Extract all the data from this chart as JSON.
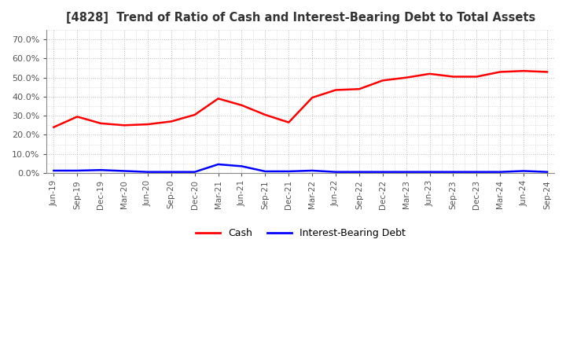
{
  "title": "[4828]  Trend of Ratio of Cash and Interest-Bearing Debt to Total Assets",
  "x_labels": [
    "Jun-19",
    "Sep-19",
    "Dec-19",
    "Mar-20",
    "Jun-20",
    "Sep-20",
    "Dec-20",
    "Mar-21",
    "Jun-21",
    "Sep-21",
    "Dec-21",
    "Mar-22",
    "Jun-22",
    "Sep-22",
    "Dec-22",
    "Mar-23",
    "Jun-23",
    "Sep-23",
    "Dec-23",
    "Mar-24",
    "Jun-24",
    "Sep-24"
  ],
  "cash": [
    0.24,
    0.295,
    0.26,
    0.25,
    0.255,
    0.27,
    0.305,
    0.39,
    0.355,
    0.305,
    0.265,
    0.395,
    0.435,
    0.44,
    0.485,
    0.5,
    0.52,
    0.505,
    0.505,
    0.53,
    0.535,
    0.53
  ],
  "interest_bearing_debt": [
    0.012,
    0.012,
    0.015,
    0.01,
    0.005,
    0.005,
    0.005,
    0.045,
    0.035,
    0.008,
    0.008,
    0.012,
    0.005,
    0.005,
    0.005,
    0.005,
    0.005,
    0.005,
    0.005,
    0.005,
    0.01,
    0.005
  ],
  "cash_color": "#FF0000",
  "debt_color": "#0000FF",
  "background_color": "#FFFFFF",
  "grid_color": "#AAAAAA",
  "title_color": "#333333",
  "ylim": [
    0.0,
    0.75
  ],
  "yticks": [
    0.0,
    0.1,
    0.2,
    0.3,
    0.4,
    0.5,
    0.6,
    0.7
  ],
  "legend_cash": "Cash",
  "legend_debt": "Interest-Bearing Debt"
}
